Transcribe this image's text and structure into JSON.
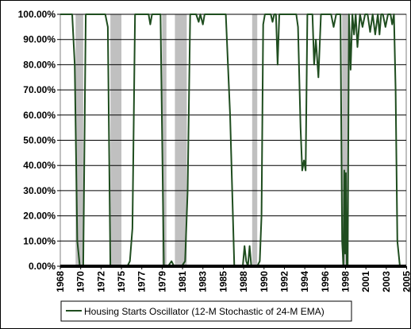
{
  "chart_data": {
    "type": "line",
    "title": "",
    "xlabel": "",
    "ylabel": "",
    "ylim": [
      0,
      100
    ],
    "xlim": [
      1968.0,
      2008.75
    ],
    "y_ticks": [
      "0.00%",
      "10.00%",
      "20.00%",
      "30.00%",
      "40.00%",
      "50.00%",
      "60.00%",
      "70.00%",
      "80.00%",
      "90.00%",
      "100.00%"
    ],
    "x_ticks": [
      {
        "value": 1968.0,
        "label": "1968"
      },
      {
        "value": 1970.4,
        "label": "1970"
      },
      {
        "value": 1972.8,
        "label": "1972"
      },
      {
        "value": 1975.2,
        "label": "1975"
      },
      {
        "value": 1977.6,
        "label": "1977"
      },
      {
        "value": 1980.0,
        "label": "1979"
      },
      {
        "value": 1982.4,
        "label": "1981"
      },
      {
        "value": 1984.8,
        "label": "1983"
      },
      {
        "value": 1987.2,
        "label": "1985"
      },
      {
        "value": 1989.6,
        "label": "1988"
      },
      {
        "value": 1992.0,
        "label": "1990"
      },
      {
        "value": 1994.4,
        "label": "1992"
      },
      {
        "value": 1996.8,
        "label": "1994"
      },
      {
        "value": 1999.2,
        "label": "1996"
      },
      {
        "value": 2001.6,
        "label": "1998"
      },
      {
        "value": 2004.0,
        "label": "2001"
      },
      {
        "value": 2006.4,
        "label": "2003"
      },
      {
        "value": 2008.8,
        "label": "2005"
      }
    ],
    "grid": true,
    "legend_position": "bottom",
    "recession_bands": [
      [
        1969.8,
        1970.7
      ],
      [
        1973.9,
        1975.2
      ],
      [
        1980.0,
        1980.5
      ],
      [
        1981.5,
        1982.9
      ],
      [
        1990.6,
        1991.2
      ],
      [
        2001.2,
        2001.9
      ]
    ],
    "series": [
      {
        "name": "Housing Starts Oscillator (12-M Stochastic of 24-M EMA)",
        "color": "#1f4d1f",
        "x": [
          1968.0,
          1969.0,
          1969.4,
          1969.7,
          1970.0,
          1970.3,
          1970.7,
          1971.0,
          1972.0,
          1973.0,
          1973.3,
          1973.6,
          1973.9,
          1974.5,
          1975.0,
          1975.5,
          1975.9,
          1976.2,
          1976.5,
          1976.8,
          1977.2,
          1977.6,
          1978.0,
          1978.4,
          1978.6,
          1978.8,
          1979.2,
          1979.5,
          1979.8,
          1980.2,
          1980.6,
          1980.7,
          1980.9,
          1981.1,
          1981.4,
          1981.8,
          1982.3,
          1982.7,
          1983.0,
          1983.3,
          1983.5,
          1983.8,
          1984.0,
          1984.3,
          1984.5,
          1984.8,
          1985.0,
          1985.3,
          1985.7,
          1986.0,
          1986.3,
          1986.6,
          1987.0,
          1987.3,
          1987.5,
          1988.0,
          1988.5,
          1988.8,
          1989.0,
          1989.5,
          1989.7,
          1989.9,
          1990.1,
          1990.3,
          1990.5,
          1991.2,
          1991.5,
          1991.7,
          1991.9,
          1992.1,
          1992.3,
          1992.5,
          1992.8,
          1993.0,
          1993.2,
          1993.4,
          1993.6,
          1993.8,
          1994.0,
          1994.3,
          1994.6,
          1994.8,
          1995.0,
          1995.3,
          1995.6,
          1995.8,
          1996.0,
          1996.3,
          1996.5,
          1996.7,
          1996.9,
          1997.1,
          1997.3,
          1997.5,
          1997.7,
          1997.9,
          1998.1,
          1998.4,
          1998.7,
          1999.0,
          1999.3,
          1999.6,
          1999.9,
          2000.2,
          2000.5,
          2000.8,
          2001.0,
          2001.2,
          2001.35,
          2001.45,
          2001.55,
          2001.65,
          2001.75,
          2001.85,
          2002.0,
          2002.2,
          2002.4,
          2002.6,
          2002.8,
          2003.0,
          2003.3,
          2003.6,
          2003.9,
          2004.2,
          2004.5,
          2004.8,
          2005.1,
          2005.4,
          2005.6,
          2005.8,
          2006.0,
          2006.3,
          2006.6,
          2006.9,
          2007.1,
          2007.3,
          2007.5,
          2007.7,
          2008.0,
          2008.4
        ],
        "y": [
          100,
          100,
          100,
          80,
          10,
          0,
          0,
          100,
          100,
          100,
          100,
          95,
          0,
          0,
          0,
          0,
          0,
          2,
          15,
          100,
          100,
          100,
          100,
          100,
          96,
          100,
          100,
          100,
          100,
          0,
          0,
          0,
          1,
          2,
          0,
          0,
          0,
          2,
          30,
          100,
          100,
          100,
          100,
          97,
          100,
          96,
          100,
          100,
          100,
          100,
          100,
          100,
          100,
          100,
          100,
          60,
          0,
          0,
          0,
          0,
          8,
          2,
          0,
          8,
          0,
          0,
          2,
          20,
          96,
          100,
          100,
          100,
          100,
          97,
          100,
          100,
          80,
          100,
          100,
          100,
          100,
          100,
          100,
          100,
          100,
          100,
          95,
          55,
          38,
          42,
          38,
          100,
          100,
          100,
          100,
          80,
          90,
          75,
          100,
          100,
          100,
          100,
          100,
          95,
          100,
          100,
          100,
          10,
          0,
          38,
          5,
          37,
          0,
          0,
          100,
          78,
          100,
          92,
          100,
          87,
          100,
          95,
          100,
          100,
          93,
          100,
          92,
          100,
          92,
          100,
          100,
          95,
          100,
          100,
          96,
          100,
          70,
          10,
          0,
          0
        ]
      }
    ]
  }
}
